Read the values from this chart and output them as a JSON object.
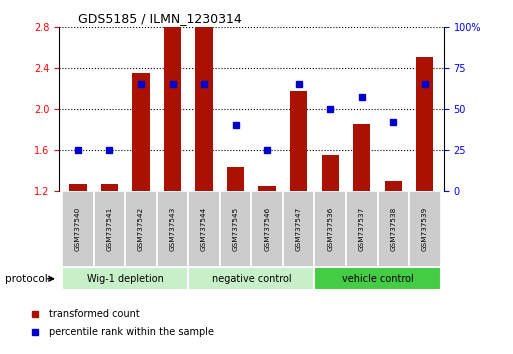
{
  "title": "GDS5185 / ILMN_1230314",
  "samples": [
    "GSM737540",
    "GSM737541",
    "GSM737542",
    "GSM737543",
    "GSM737544",
    "GSM737545",
    "GSM737546",
    "GSM737547",
    "GSM737536",
    "GSM737537",
    "GSM737538",
    "GSM737539"
  ],
  "red_values": [
    1.27,
    1.27,
    2.35,
    2.8,
    2.8,
    1.43,
    1.25,
    2.17,
    1.55,
    1.85,
    1.3,
    2.5
  ],
  "blue_values": [
    25,
    25,
    65,
    65,
    65,
    40,
    25,
    65,
    50,
    57,
    42,
    65
  ],
  "ylim_left": [
    1.2,
    2.8
  ],
  "ylim_right": [
    0,
    100
  ],
  "yticks_left": [
    1.2,
    1.6,
    2.0,
    2.4,
    2.8
  ],
  "yticks_right": [
    0,
    25,
    50,
    75,
    100
  ],
  "groups": [
    {
      "label": "Wig-1 depletion",
      "start": 0,
      "end": 3,
      "color": "#c8f0c8"
    },
    {
      "label": "negative control",
      "start": 4,
      "end": 7,
      "color": "#c8f0c8"
    },
    {
      "label": "vehicle control",
      "start": 8,
      "end": 11,
      "color": "#44cc44"
    }
  ],
  "bar_color": "#aa1100",
  "dot_color": "#0000cc",
  "bar_bottom": 1.2,
  "sample_box_color": "#cccccc",
  "protocol_label": "protocol",
  "legend_red": "transformed count",
  "legend_blue": "percentile rank within the sample"
}
